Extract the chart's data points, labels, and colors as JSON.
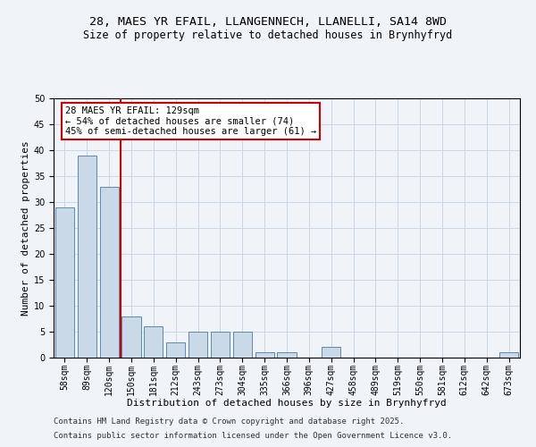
{
  "title_line1": "28, MAES YR EFAIL, LLANGENNECH, LLANELLI, SA14 8WD",
  "title_line2": "Size of property relative to detached houses in Brynhyfryd",
  "xlabel": "Distribution of detached houses by size in Brynhyfryd",
  "ylabel": "Number of detached properties",
  "categories": [
    "58sqm",
    "89sqm",
    "120sqm",
    "150sqm",
    "181sqm",
    "212sqm",
    "243sqm",
    "273sqm",
    "304sqm",
    "335sqm",
    "366sqm",
    "396sqm",
    "427sqm",
    "458sqm",
    "489sqm",
    "519sqm",
    "550sqm",
    "581sqm",
    "612sqm",
    "642sqm",
    "673sqm"
  ],
  "values": [
    29,
    39,
    33,
    8,
    6,
    3,
    5,
    5,
    5,
    1,
    1,
    0,
    2,
    0,
    0,
    0,
    0,
    0,
    0,
    0,
    1
  ],
  "bar_color": "#c9d9e8",
  "bar_edge_color": "#5a8ab0",
  "vline_color": "#cc0000",
  "annotation_text": "28 MAES YR EFAIL: 129sqm\n← 54% of detached houses are smaller (74)\n45% of semi-detached houses are larger (61) →",
  "annotation_box_color": "#ffffff",
  "annotation_box_edge": "#cc0000",
  "ylim": [
    0,
    50
  ],
  "yticks": [
    0,
    5,
    10,
    15,
    20,
    25,
    30,
    35,
    40,
    45,
    50
  ],
  "background_color": "#f0f4f8",
  "grid_color": "#c8d8e8",
  "footer_line1": "Contains HM Land Registry data © Crown copyright and database right 2025.",
  "footer_line2": "Contains public sector information licensed under the Open Government Licence v3.0.",
  "title_fontsize": 9.5,
  "subtitle_fontsize": 8.5,
  "axis_label_fontsize": 8,
  "tick_fontsize": 7,
  "annotation_fontsize": 7.5,
  "footer_fontsize": 6.5
}
